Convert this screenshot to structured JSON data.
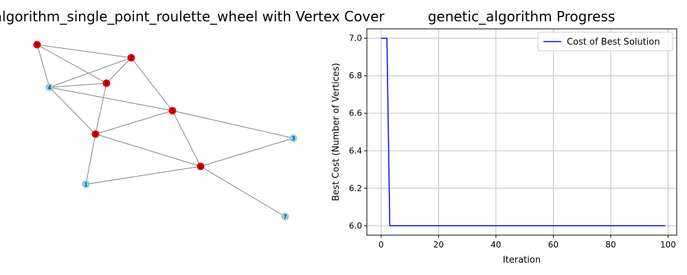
{
  "graph_panel": {
    "title": "genetic_algorithm_single_point_roulette_wheel with Vertex Cover",
    "colors": {
      "in_cover": "#e8000b",
      "not_in_cover": "#87ceeb",
      "edge": "#808080"
    },
    "nodes": [
      {
        "id": "0",
        "in_cover": true
      },
      {
        "id": "1",
        "in_cover": false
      },
      {
        "id": "2",
        "in_cover": true
      },
      {
        "id": "3",
        "in_cover": false
      },
      {
        "id": "4",
        "in_cover": false
      },
      {
        "id": "5",
        "in_cover": true
      },
      {
        "id": "6",
        "in_cover": true
      },
      {
        "id": "7",
        "in_cover": false
      },
      {
        "id": "8",
        "in_cover": true
      },
      {
        "id": "9",
        "in_cover": true
      }
    ],
    "edges": [
      [
        "0",
        "2"
      ],
      [
        "0",
        "9"
      ],
      [
        "0",
        "4"
      ],
      [
        "2",
        "4"
      ],
      [
        "2",
        "9"
      ],
      [
        "2",
        "5"
      ],
      [
        "4",
        "9"
      ],
      [
        "4",
        "5"
      ],
      [
        "4",
        "6"
      ],
      [
        "9",
        "6"
      ],
      [
        "5",
        "6"
      ],
      [
        "5",
        "3"
      ],
      [
        "5",
        "8"
      ],
      [
        "6",
        "1"
      ],
      [
        "6",
        "8"
      ],
      [
        "1",
        "8"
      ],
      [
        "3",
        "8"
      ],
      [
        "8",
        "7"
      ]
    ]
  },
  "chart_data": {
    "type": "line",
    "title": "genetic_algorithm Progress",
    "xlabel": "Iteration",
    "ylabel": "Best Cost (Number of Vertices)",
    "xlim": [
      -5,
      103
    ],
    "ylim": [
      5.95,
      7.05
    ],
    "xticks": [
      0,
      20,
      40,
      60,
      80,
      100
    ],
    "yticks": [
      6.0,
      6.2,
      6.4,
      6.6,
      6.8,
      7.0
    ],
    "grid": true,
    "legend_position": "top-right",
    "series": [
      {
        "name": "Cost of Best Solution",
        "color": "#0000ff",
        "x": [
          0,
          1,
          2,
          3,
          4,
          99
        ],
        "y": [
          7,
          7,
          7,
          6,
          6,
          6
        ]
      }
    ]
  }
}
